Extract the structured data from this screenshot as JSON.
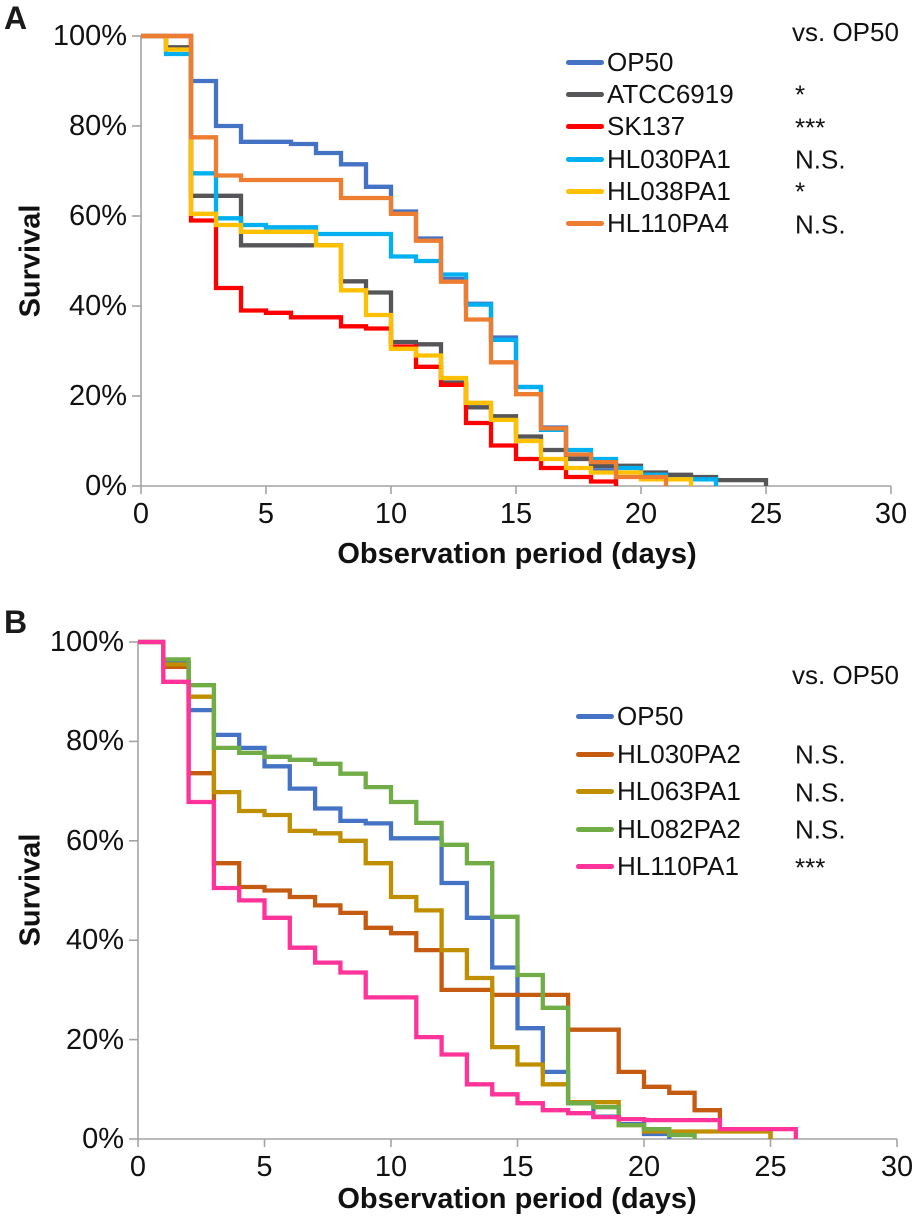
{
  "chart_data": [
    {
      "type": "line",
      "subtype": "kaplan-meier-step-survival",
      "panel_label": "A",
      "title": "",
      "xlabel": "Observation period (days)",
      "ylabel": "Survival",
      "legend_note": "vs. OP50",
      "x_ticks": [
        0,
        5,
        10,
        15,
        20,
        25,
        30
      ],
      "y_tick_labels": [
        "0%",
        "20%",
        "40%",
        "60%",
        "80%",
        "100%"
      ],
      "x_range_days": [
        0,
        30
      ],
      "y_range_percent": [
        0,
        100
      ],
      "grid": false,
      "legend_position": "upper right",
      "x_unit": "days",
      "series": [
        {
          "name": "OP50",
          "color": "#4472C4",
          "significance": "",
          "survival_percent_by_day": [
            100,
            100,
            90,
            80,
            76.5,
            76.5,
            76,
            74,
            71.5,
            66.5,
            61,
            55,
            46,
            40.5,
            33,
            22,
            13,
            6.5,
            3.5,
            0
          ]
        },
        {
          "name": "ATCC6919",
          "color": "#565658",
          "significance": "*",
          "survival_percent_by_day": [
            100,
            97.5,
            64.5,
            64.5,
            53.5,
            53.5,
            53.5,
            53.5,
            45.5,
            43,
            32,
            31.5,
            23,
            17.5,
            15.5,
            11,
            8,
            6,
            4.5,
            4.5,
            3,
            2.5,
            2,
            1.3,
            1.3,
            0
          ]
        },
        {
          "name": "SK137",
          "color": "#FF0000",
          "significance": "***",
          "survival_percent_by_day": [
            100,
            100,
            59,
            44,
            39,
            38.5,
            37.5,
            37.5,
            35.5,
            35,
            31,
            26.5,
            22.5,
            14,
            9,
            6,
            4,
            2,
            1,
            0
          ]
        },
        {
          "name": "HL030PA1",
          "color": "#00B0F0",
          "significance": "N.S.",
          "survival_percent_by_day": [
            100,
            96,
            69.5,
            59.5,
            58,
            57.5,
            57.5,
            56,
            56,
            56,
            51,
            50,
            47,
            40.3,
            32.5,
            22,
            12.5,
            8,
            6,
            4,
            2.5,
            1.5,
            1.5,
            0
          ]
        },
        {
          "name": "HL038PA1",
          "color": "#FFC000",
          "significance": "*",
          "survival_percent_by_day": [
            100,
            97,
            60.5,
            58,
            56.5,
            56.5,
            56.5,
            53.5,
            43.5,
            38,
            30.5,
            29,
            24,
            18.5,
            14.7,
            10,
            6,
            4,
            3,
            3,
            1.5,
            1.5,
            0
          ]
        },
        {
          "name": "HL110PA4",
          "color": "#ED7D31",
          "significance": "N.S.",
          "survival_percent_by_day": [
            100,
            100,
            77.5,
            69,
            68,
            68,
            68,
            68,
            64,
            64,
            60.5,
            54.5,
            45.4,
            37,
            27.5,
            20.4,
            12.8,
            7,
            5.3,
            2,
            2,
            0
          ]
        }
      ]
    },
    {
      "type": "line",
      "subtype": "kaplan-meier-step-survival",
      "panel_label": "B",
      "title": "",
      "xlabel": "Observation period (days)",
      "ylabel": "Survival",
      "legend_note": "vs. OP50",
      "x_ticks": [
        0,
        5,
        10,
        15,
        20,
        25,
        30
      ],
      "y_tick_labels": [
        "0%",
        "20%",
        "40%",
        "60%",
        "80%",
        "100%"
      ],
      "x_range_days": [
        0,
        30
      ],
      "y_range_percent": [
        0,
        100
      ],
      "grid": false,
      "legend_position": "upper right",
      "x_unit": "days",
      "series": [
        {
          "name": "OP50",
          "color": "#4472C4",
          "significance": "",
          "survival_percent_by_day": [
            100,
            96,
            86.3,
            81.3,
            78.7,
            75,
            70.5,
            66.5,
            64,
            63.5,
            60.5,
            60.5,
            51.5,
            44.5,
            34.5,
            22.3,
            13.5,
            7.2,
            4.5,
            3,
            1,
            0
          ]
        },
        {
          "name": "HL030PA2",
          "color": "#C55A11",
          "significance": "N.S.",
          "survival_percent_by_day": [
            100,
            95,
            73.6,
            55.5,
            50.7,
            50,
            48.7,
            47,
            45.5,
            42.5,
            41.4,
            38,
            30,
            30,
            29,
            29,
            29,
            22,
            22,
            13.5,
            10.5,
            9.3,
            5.8,
            2,
            2,
            0
          ]
        },
        {
          "name": "HL063PA1",
          "color": "#BF8F00",
          "significance": "N.S.",
          "survival_percent_by_day": [
            100,
            95.5,
            89,
            69.8,
            66,
            65.2,
            62,
            61.5,
            60,
            55.5,
            48.7,
            46,
            38,
            32.4,
            18.5,
            15,
            11,
            7.4,
            7.4,
            2.8,
            1.5,
            1.5,
            1.5,
            1.5,
            1.5,
            0
          ]
        },
        {
          "name": "HL082PA2",
          "color": "#70AD47",
          "significance": "N.S.",
          "survival_percent_by_day": [
            100,
            96.5,
            91.3,
            78.7,
            77.7,
            76.9,
            76.3,
            75.5,
            73.5,
            70.8,
            67.8,
            63.6,
            59.2,
            55.5,
            44.7,
            33,
            26.4,
            7.2,
            6.4,
            2.8,
            2,
            0.8,
            0
          ]
        },
        {
          "name": "HL110PA1",
          "color": "#FF3399",
          "significance": "***",
          "survival_percent_by_day": [
            100,
            92,
            67.8,
            50.5,
            48,
            44.5,
            38.5,
            35.5,
            33.5,
            28.5,
            28.5,
            20.5,
            17,
            11,
            9,
            7.2,
            5.8,
            5.2,
            4.4,
            4,
            3.8,
            3.8,
            3.8,
            2,
            2,
            2,
            0
          ]
        }
      ]
    }
  ]
}
